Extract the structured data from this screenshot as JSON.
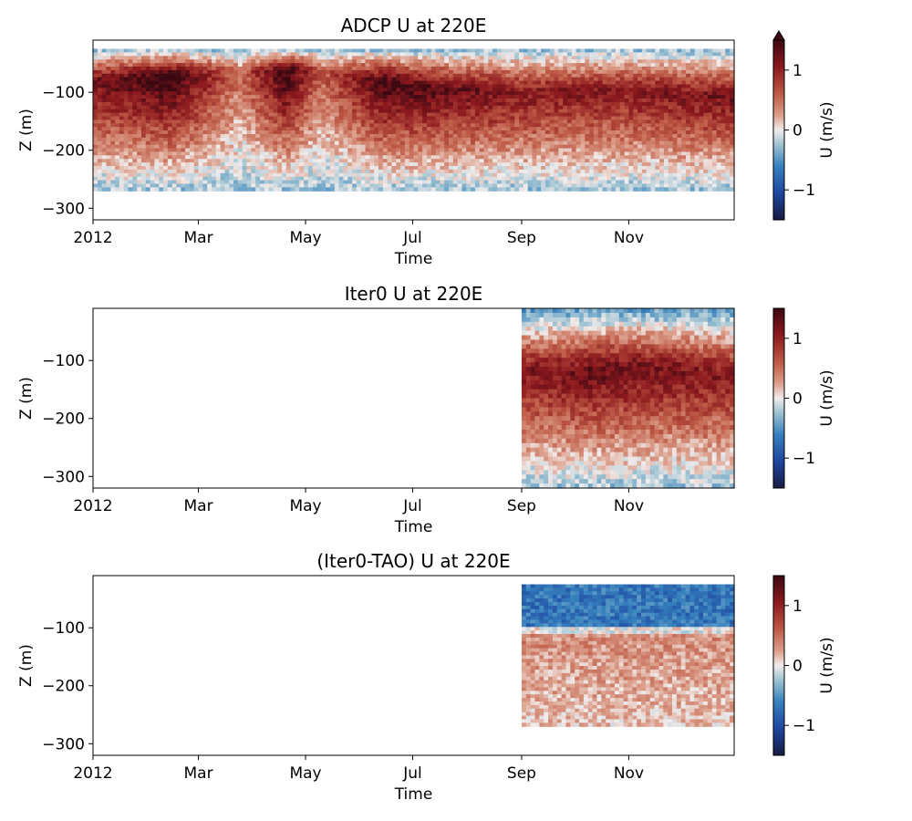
{
  "chart_data": [
    {
      "type": "heatmap",
      "title": "ADCP U at 220E",
      "xlabel": "Time",
      "ylabel": "Z (m)",
      "x_range": [
        "2012-01-01",
        "2012-12-31"
      ],
      "xtick_labels": [
        "2012",
        "Mar",
        "May",
        "Jul",
        "Sep",
        "Nov"
      ],
      "ylim": [
        -320,
        -10
      ],
      "yticks": [
        -100,
        -200,
        -300
      ],
      "ytick_labels": [
        "−100",
        "−200",
        "−300"
      ],
      "data_time_range": [
        "2012-01-01",
        "2012-12-31"
      ],
      "data_depth_range": [
        -270,
        -25
      ],
      "colorbar": {
        "label": "U (m/s)",
        "vmin": -1.5,
        "vmax": 1.5,
        "ticks": [
          1,
          0,
          -1
        ],
        "tick_labels": [
          "1",
          "0",
          "−1"
        ],
        "extend": "max",
        "cmap": "balance"
      },
      "pattern": {
        "core_depth": [
          {
            "t": "2012-01-01",
            "z": -80
          },
          {
            "t": "2012-03-01",
            "z": -70
          },
          {
            "t": "2012-05-01",
            "z": -60
          },
          {
            "t": "2012-07-01",
            "z": -90
          },
          {
            "t": "2012-09-01",
            "z": -100
          },
          {
            "t": "2012-11-01",
            "z": -95
          },
          {
            "t": "2012-12-31",
            "z": -110
          }
        ],
        "core_speed": [
          {
            "t": "2012-01-01",
            "u": 1.2
          },
          {
            "t": "2012-02-15",
            "u": 1.6
          },
          {
            "t": "2012-03-25",
            "u": 0.5
          },
          {
            "t": "2012-04-20",
            "u": 1.6
          },
          {
            "t": "2012-05-10",
            "u": 0.6
          },
          {
            "t": "2012-06-15",
            "u": 1.5
          },
          {
            "t": "2012-09-01",
            "u": 1.1
          },
          {
            "t": "2012-11-01",
            "u": 1.1
          },
          {
            "t": "2012-12-31",
            "u": 1.2
          }
        ],
        "surface_u": -0.3
      }
    },
    {
      "type": "heatmap",
      "title": "Iter0 U at 220E",
      "xlabel": "Time",
      "ylabel": "Z (m)",
      "x_range": [
        "2012-01-01",
        "2012-12-31"
      ],
      "xtick_labels": [
        "2012",
        "Mar",
        "May",
        "Jul",
        "Sep",
        "Nov"
      ],
      "ylim": [
        -320,
        -10
      ],
      "yticks": [
        -100,
        -200,
        -300
      ],
      "ytick_labels": [
        "−100",
        "−200",
        "−300"
      ],
      "data_time_range": [
        "2012-09-01",
        "2012-12-31"
      ],
      "data_depth_range": [
        -320,
        -10
      ],
      "colorbar": {
        "label": "U (m/s)",
        "vmin": -1.5,
        "vmax": 1.5,
        "ticks": [
          1,
          0,
          -1
        ],
        "tick_labels": [
          "1",
          "0",
          "−1"
        ],
        "extend": "neither",
        "cmap": "balance"
      },
      "pattern": {
        "core_depth": [
          {
            "t": "2012-09-01",
            "z": -115
          },
          {
            "t": "2012-10-01",
            "z": -120
          },
          {
            "t": "2012-11-01",
            "z": -110
          },
          {
            "t": "2012-12-31",
            "z": -125
          }
        ],
        "core_speed": [
          {
            "t": "2012-09-01",
            "u": 1.1
          },
          {
            "t": "2012-10-15",
            "u": 1.3
          },
          {
            "t": "2012-12-31",
            "u": 1.1
          }
        ],
        "surface_u": -0.5
      }
    },
    {
      "type": "heatmap",
      "title": "(Iter0-TAO) U at 220E",
      "xlabel": "Time",
      "ylabel": "Z (m)",
      "x_range": [
        "2012-01-01",
        "2012-12-31"
      ],
      "xtick_labels": [
        "2012",
        "Mar",
        "May",
        "Jul",
        "Sep",
        "Nov"
      ],
      "ylim": [
        -320,
        -10
      ],
      "yticks": [
        -100,
        -200,
        -300
      ],
      "ytick_labels": [
        "−100",
        "−200",
        "−300"
      ],
      "data_time_range": [
        "2012-09-01",
        "2012-12-31"
      ],
      "data_depth_range": [
        -270,
        -25
      ],
      "colorbar": {
        "label": "U (m/s)",
        "vmin": -1.5,
        "vmax": 1.5,
        "ticks": [
          1,
          0,
          -1
        ],
        "tick_labels": [
          "1",
          "0",
          "−1"
        ],
        "extend": "neither",
        "cmap": "balance"
      },
      "pattern": {
        "upper_u": -0.7,
        "interface_z": -105,
        "lower_u": 0.35
      }
    }
  ]
}
